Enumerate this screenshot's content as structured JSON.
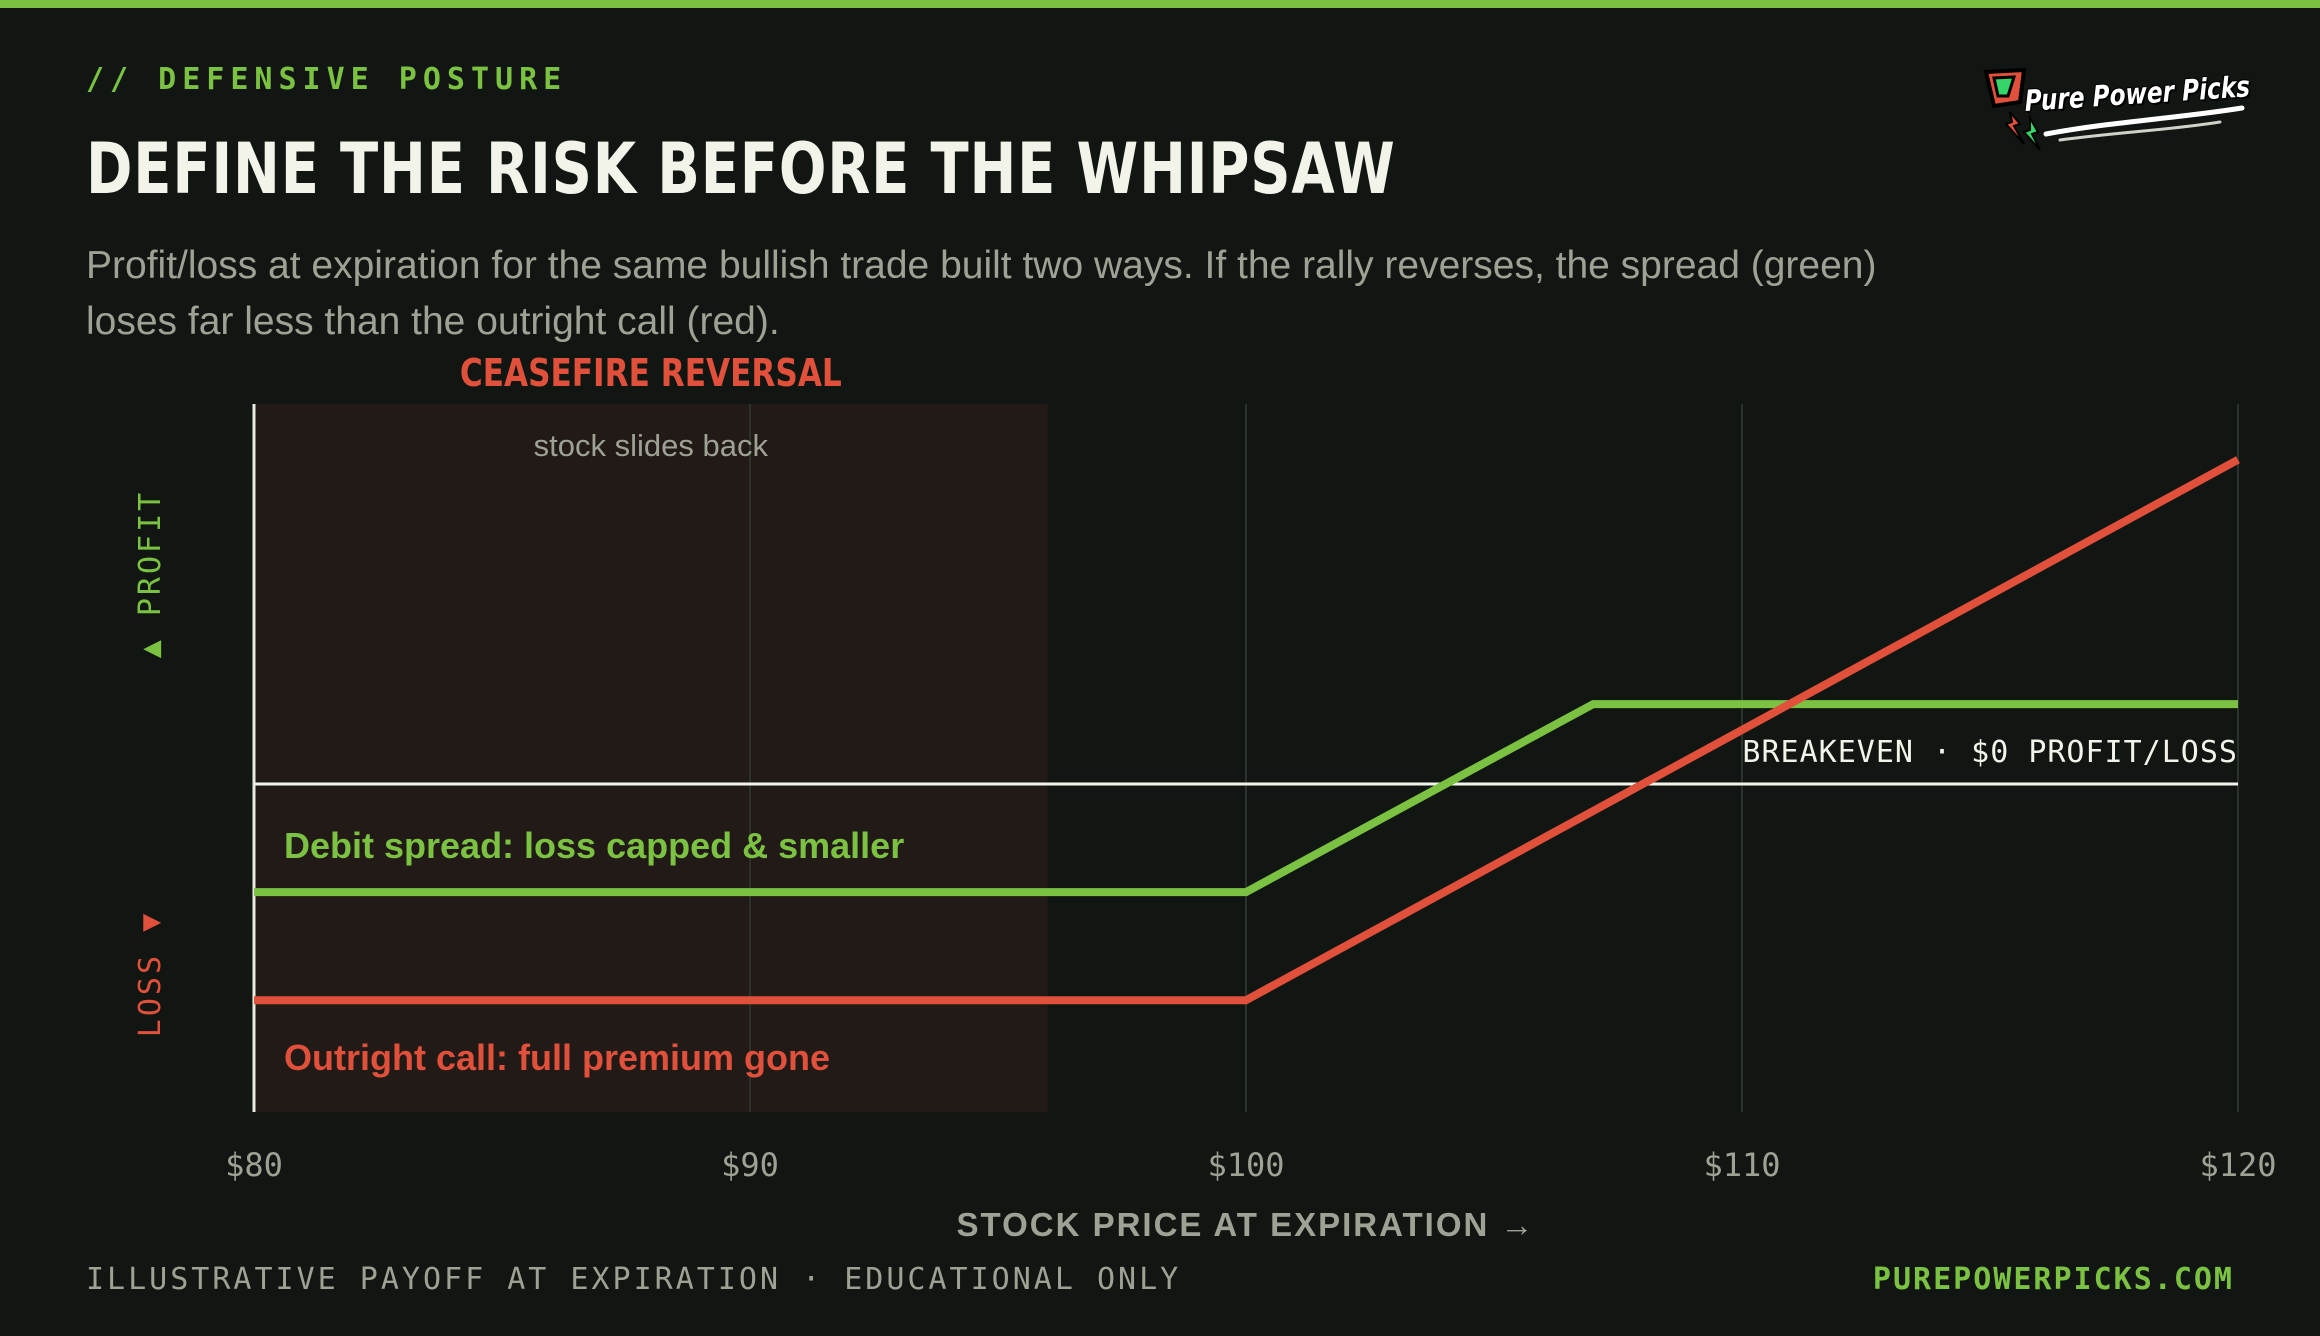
{
  "header": {
    "eyebrow": "// DEFENSIVE POSTURE",
    "title": "DEFINE THE RISK BEFORE THE WHIPSAW",
    "subtitle": "Profit/loss at expiration for the same bullish trade built two ways. If the rally reverses, the spread (green) loses far less than the outright call (red)."
  },
  "logo": {
    "text": "Pure Power Picks",
    "icon": "lightning-bolt-icon"
  },
  "footer": {
    "left": "ILLUSTRATIVE PAYOFF AT EXPIRATION · EDUCATIONAL ONLY",
    "right": "PUREPOWERPICKS.COM"
  },
  "colors": {
    "background": "#111612",
    "spread": "#7cc242",
    "call": "#e0503a",
    "zone": "#221a16",
    "text_muted": "#9ea294",
    "breakeven": "#f2f4ea"
  },
  "chart_data": {
    "type": "line",
    "xlabel": "STOCK PRICE AT EXPIRATION →",
    "xlim": [
      80,
      120
    ],
    "ylim": [
      -7.5,
      7.5
    ],
    "x_ticks": [
      80,
      90,
      100,
      110,
      120
    ],
    "x_tick_labels": [
      "$80",
      "$90",
      "$100",
      "$110",
      "$120"
    ],
    "y_axis_top_label": "▲ PROFIT",
    "y_axis_bottom_label": "LOSS ▼",
    "grid": "vertical",
    "breakeven": {
      "y": 0,
      "label": "BREAKEVEN · $0 PROFIT/LOSS"
    },
    "shaded_zone": {
      "x_range": [
        80,
        96
      ],
      "title": "CEASEFIRE REVERSAL",
      "label": "stock slides back"
    },
    "series": [
      {
        "label": "Debit spread: loss capped & smaller",
        "color": "#7cc242",
        "points": [
          [
            80,
            -2.3
          ],
          [
            100,
            -2.3
          ],
          [
            107,
            1.7
          ],
          [
            120,
            1.7
          ]
        ]
      },
      {
        "label": "Outright call: full premium gone",
        "color": "#e0503a",
        "points": [
          [
            80,
            -4.6
          ],
          [
            100,
            -4.6
          ],
          [
            120,
            6.9
          ]
        ]
      }
    ]
  }
}
